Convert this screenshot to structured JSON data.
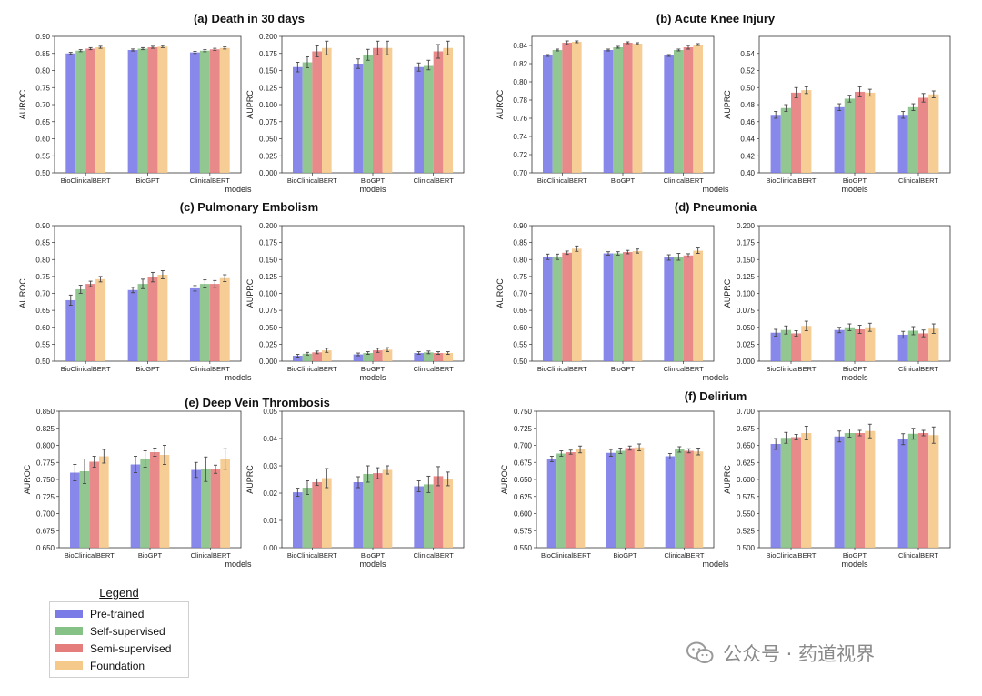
{
  "colors": {
    "series": [
      "#7b7be8",
      "#86c186",
      "#e57d7d",
      "#f5c98a"
    ],
    "axis": "#333333",
    "errorbar": "#444444"
  },
  "legend": {
    "title": "Legend",
    "entries": [
      "Pre-trained",
      "Self-supervised",
      "Semi-supervised",
      "Foundation"
    ]
  },
  "watermark": {
    "icon": "wechat-icon",
    "text": "公众号 · 药道视界"
  },
  "chart_data": [
    {
      "type": "bar",
      "title": "(a) Death in 30 days",
      "xlabel": "",
      "ylabel": "AUROC",
      "categories": [
        "BioClinicalBERT",
        "BioGPT",
        "ClinicalBERT"
      ],
      "ylim": [
        0.5,
        0.9
      ],
      "yticks": [
        "0.50",
        "0.55",
        "0.60",
        "0.65",
        "0.70",
        "0.75",
        "0.80",
        "0.85",
        "0.90"
      ],
      "series": [
        {
          "name": "Pre-trained",
          "values": [
            0.85,
            0.86,
            0.853
          ],
          "err": [
            0.003,
            0.003,
            0.003
          ]
        },
        {
          "name": "Self-supervised",
          "values": [
            0.858,
            0.864,
            0.858
          ],
          "err": [
            0.003,
            0.003,
            0.003
          ]
        },
        {
          "name": "Semi-supervised",
          "values": [
            0.864,
            0.868,
            0.862
          ],
          "err": [
            0.003,
            0.003,
            0.003
          ]
        },
        {
          "name": "Foundation",
          "values": [
            0.868,
            0.87,
            0.866
          ],
          "err": [
            0.003,
            0.003,
            0.003
          ]
        }
      ]
    },
    {
      "type": "bar",
      "title": "",
      "xlabel": "models",
      "ylabel": "AUPRC",
      "categories": [
        "BioClinicalBERT",
        "BioGPT",
        "ClinicalBERT"
      ],
      "ylim": [
        0.0,
        0.2
      ],
      "yticks": [
        "0.000",
        "0.025",
        "0.050",
        "0.075",
        "0.100",
        "0.125",
        "0.150",
        "0.175",
        "0.200"
      ],
      "series": [
        {
          "name": "Pre-trained",
          "values": [
            0.155,
            0.16,
            0.155
          ],
          "err": [
            0.007,
            0.007,
            0.006
          ]
        },
        {
          "name": "Self-supervised",
          "values": [
            0.162,
            0.173,
            0.158
          ],
          "err": [
            0.008,
            0.008,
            0.007
          ]
        },
        {
          "name": "Semi-supervised",
          "values": [
            0.178,
            0.183,
            0.178
          ],
          "err": [
            0.008,
            0.01,
            0.01
          ]
        },
        {
          "name": "Foundation",
          "values": [
            0.183,
            0.183,
            0.183
          ],
          "err": [
            0.01,
            0.01,
            0.01
          ]
        }
      ]
    },
    {
      "type": "bar",
      "title": "(b) Acute Knee Injury",
      "xlabel": "",
      "ylabel": "AUROC",
      "categories": [
        "BioClinicalBERT",
        "BioGPT",
        "ClinicalBERT"
      ],
      "ylim": [
        0.7,
        0.85
      ],
      "yticks": [
        "0.70",
        "0.72",
        "0.74",
        "0.76",
        "0.78",
        "0.80",
        "0.82",
        "0.84"
      ],
      "series": [
        {
          "name": "Pre-trained",
          "values": [
            0.829,
            0.835,
            0.829
          ],
          "err": [
            0.001,
            0.001,
            0.001
          ]
        },
        {
          "name": "Self-supervised",
          "values": [
            0.835,
            0.838,
            0.835
          ],
          "err": [
            0.001,
            0.001,
            0.001
          ]
        },
        {
          "name": "Semi-supervised",
          "values": [
            0.843,
            0.843,
            0.838
          ],
          "err": [
            0.002,
            0.001,
            0.002
          ]
        },
        {
          "name": "Foundation",
          "values": [
            0.844,
            0.842,
            0.841
          ],
          "err": [
            0.001,
            0.001,
            0.001
          ]
        }
      ]
    },
    {
      "type": "bar",
      "title": "",
      "xlabel": "models",
      "ylabel": "AUPRC",
      "categories": [
        "BioClinicalBERT",
        "BioGPT",
        "ClinicalBERT"
      ],
      "ylim": [
        0.4,
        0.56
      ],
      "yticks": [
        "0.40",
        "0.42",
        "0.44",
        "0.46",
        "0.48",
        "0.50",
        "0.52",
        "0.54"
      ],
      "series": [
        {
          "name": "Pre-trained",
          "values": [
            0.468,
            0.477,
            0.468
          ],
          "err": [
            0.004,
            0.004,
            0.004
          ]
        },
        {
          "name": "Self-supervised",
          "values": [
            0.476,
            0.487,
            0.477
          ],
          "err": [
            0.004,
            0.004,
            0.004
          ]
        },
        {
          "name": "Semi-supervised",
          "values": [
            0.494,
            0.495,
            0.488
          ],
          "err": [
            0.006,
            0.006,
            0.005
          ]
        },
        {
          "name": "Foundation",
          "values": [
            0.497,
            0.494,
            0.492
          ],
          "err": [
            0.004,
            0.004,
            0.004
          ]
        }
      ]
    },
    {
      "type": "bar",
      "title": "(c) Pulmonary Embolism",
      "xlabel": "",
      "ylabel": "AUROC",
      "categories": [
        "BioClinicalBERT",
        "BioGPT",
        "ClinicalBERT"
      ],
      "ylim": [
        0.5,
        0.9
      ],
      "yticks": [
        "0.50",
        "0.55",
        "0.60",
        "0.65",
        "0.70",
        "0.75",
        "0.80",
        "0.85",
        "0.90"
      ],
      "series": [
        {
          "name": "Pre-trained",
          "values": [
            0.68,
            0.71,
            0.715
          ],
          "err": [
            0.015,
            0.008,
            0.008
          ]
        },
        {
          "name": "Self-supervised",
          "values": [
            0.712,
            0.728,
            0.728
          ],
          "err": [
            0.012,
            0.014,
            0.012
          ]
        },
        {
          "name": "Semi-supervised",
          "values": [
            0.728,
            0.748,
            0.728
          ],
          "err": [
            0.008,
            0.014,
            0.01
          ]
        },
        {
          "name": "Foundation",
          "values": [
            0.742,
            0.755,
            0.745
          ],
          "err": [
            0.008,
            0.012,
            0.01
          ]
        }
      ]
    },
    {
      "type": "bar",
      "title": "",
      "xlabel": "models",
      "ylabel": "AUPRC",
      "categories": [
        "BioClinicalBERT",
        "BioGPT",
        "ClinicalBERT"
      ],
      "ylim": [
        0.0,
        0.2
      ],
      "yticks": [
        "0.000",
        "0.025",
        "0.050",
        "0.075",
        "0.100",
        "0.125",
        "0.150",
        "0.175",
        "0.200"
      ],
      "series": [
        {
          "name": "Pre-trained",
          "values": [
            0.008,
            0.01,
            0.012
          ],
          "err": [
            0.002,
            0.002,
            0.002
          ]
        },
        {
          "name": "Self-supervised",
          "values": [
            0.011,
            0.012,
            0.013
          ],
          "err": [
            0.002,
            0.002,
            0.002
          ]
        },
        {
          "name": "Semi-supervised",
          "values": [
            0.013,
            0.016,
            0.012
          ],
          "err": [
            0.002,
            0.003,
            0.002
          ]
        },
        {
          "name": "Foundation",
          "values": [
            0.016,
            0.017,
            0.012
          ],
          "err": [
            0.003,
            0.003,
            0.002
          ]
        }
      ]
    },
    {
      "type": "bar",
      "title": "(d) Pneumonia",
      "xlabel": "",
      "ylabel": "AUROC",
      "categories": [
        "BioClinicalBERT",
        "BioGPT",
        "ClinicalBERT"
      ],
      "ylim": [
        0.5,
        0.9
      ],
      "yticks": [
        "0.50",
        "0.55",
        "0.60",
        "0.65",
        "0.70",
        "0.75",
        "0.80",
        "0.85",
        "0.90"
      ],
      "series": [
        {
          "name": "Pre-trained",
          "values": [
            0.808,
            0.818,
            0.806
          ],
          "err": [
            0.008,
            0.005,
            0.008
          ]
        },
        {
          "name": "Self-supervised",
          "values": [
            0.808,
            0.818,
            0.808
          ],
          "err": [
            0.008,
            0.005,
            0.01
          ]
        },
        {
          "name": "Semi-supervised",
          "values": [
            0.82,
            0.822,
            0.812
          ],
          "err": [
            0.005,
            0.005,
            0.005
          ]
        },
        {
          "name": "Foundation",
          "values": [
            0.832,
            0.825,
            0.826
          ],
          "err": [
            0.008,
            0.006,
            0.008
          ]
        }
      ]
    },
    {
      "type": "bar",
      "title": "",
      "xlabel": "models",
      "ylabel": "AUPRC",
      "categories": [
        "BioClinicalBERT",
        "BioGPT",
        "ClinicalBERT"
      ],
      "ylim": [
        0.0,
        0.2
      ],
      "yticks": [
        "0.000",
        "0.025",
        "0.050",
        "0.075",
        "0.100",
        "0.125",
        "0.150",
        "0.175",
        "0.200"
      ],
      "series": [
        {
          "name": "Pre-trained",
          "values": [
            0.042,
            0.046,
            0.039
          ],
          "err": [
            0.005,
            0.004,
            0.005
          ]
        },
        {
          "name": "Self-supervised",
          "values": [
            0.046,
            0.05,
            0.045
          ],
          "err": [
            0.006,
            0.005,
            0.006
          ]
        },
        {
          "name": "Semi-supervised",
          "values": [
            0.041,
            0.047,
            0.041
          ],
          "err": [
            0.004,
            0.006,
            0.005
          ]
        },
        {
          "name": "Foundation",
          "values": [
            0.052,
            0.05,
            0.048
          ],
          "err": [
            0.007,
            0.006,
            0.007
          ]
        }
      ]
    },
    {
      "type": "bar",
      "title": "(e) Deep Vein Thrombosis",
      "xlabel": "",
      "ylabel": "AUROC",
      "categories": [
        "BioClinicalBERT",
        "BioGPT",
        "ClinicalBERT"
      ],
      "ylim": [
        0.65,
        0.85
      ],
      "yticks": [
        "0.650",
        "0.675",
        "0.700",
        "0.725",
        "0.750",
        "0.775",
        "0.800",
        "0.825",
        "0.850"
      ],
      "series": [
        {
          "name": "Pre-trained",
          "values": [
            0.76,
            0.772,
            0.764
          ],
          "err": [
            0.012,
            0.012,
            0.011
          ]
        },
        {
          "name": "Self-supervised",
          "values": [
            0.762,
            0.78,
            0.765
          ],
          "err": [
            0.018,
            0.012,
            0.018
          ]
        },
        {
          "name": "Semi-supervised",
          "values": [
            0.776,
            0.79,
            0.765
          ],
          "err": [
            0.008,
            0.006,
            0.006
          ]
        },
        {
          "name": "Foundation",
          "values": [
            0.784,
            0.786,
            0.78
          ],
          "err": [
            0.01,
            0.014,
            0.015
          ]
        }
      ]
    },
    {
      "type": "bar",
      "title": "",
      "xlabel": "models",
      "ylabel": "AUPRC",
      "categories": [
        "BioClinicalBERT",
        "BioGPT",
        "ClinicalBERT"
      ],
      "ylim": [
        0.0,
        0.05
      ],
      "yticks": [
        "0.00",
        "0.01",
        "0.02",
        "0.03",
        "0.04",
        "0.05"
      ],
      "series": [
        {
          "name": "Pre-trained",
          "values": [
            0.0203,
            0.024,
            0.0225
          ],
          "err": [
            0.0015,
            0.002,
            0.002
          ]
        },
        {
          "name": "Self-supervised",
          "values": [
            0.022,
            0.027,
            0.0232
          ],
          "err": [
            0.0025,
            0.003,
            0.003
          ]
        },
        {
          "name": "Semi-supervised",
          "values": [
            0.024,
            0.0273,
            0.0262
          ],
          "err": [
            0.0012,
            0.002,
            0.0035
          ]
        },
        {
          "name": "Foundation",
          "values": [
            0.0255,
            0.0285,
            0.0252
          ],
          "err": [
            0.0035,
            0.0015,
            0.0025
          ]
        }
      ]
    },
    {
      "type": "bar",
      "title": "(f) Delirium",
      "xlabel": "",
      "ylabel": "AUROC",
      "categories": [
        "BioClinicalBERT",
        "BioGPT",
        "ClinicalBERT"
      ],
      "ylim": [
        0.55,
        0.75
      ],
      "yticks": [
        "0.550",
        "0.575",
        "0.600",
        "0.625",
        "0.650",
        "0.675",
        "0.700",
        "0.725",
        "0.750"
      ],
      "series": [
        {
          "name": "Pre-trained",
          "values": [
            0.68,
            0.689,
            0.684
          ],
          "err": [
            0.004,
            0.005,
            0.004
          ]
        },
        {
          "name": "Self-supervised",
          "values": [
            0.688,
            0.692,
            0.694
          ],
          "err": [
            0.004,
            0.004,
            0.004
          ]
        },
        {
          "name": "Semi-supervised",
          "values": [
            0.69,
            0.696,
            0.692
          ],
          "err": [
            0.003,
            0.003,
            0.003
          ]
        },
        {
          "name": "Foundation",
          "values": [
            0.694,
            0.697,
            0.691
          ],
          "err": [
            0.005,
            0.005,
            0.005
          ]
        }
      ]
    },
    {
      "type": "bar",
      "title": "",
      "xlabel": "models",
      "ylabel": "AUPRC",
      "categories": [
        "BioClinicalBERT",
        "BioGPT",
        "ClinicalBERT"
      ],
      "ylim": [
        0.5,
        0.7
      ],
      "yticks": [
        "0.500",
        "0.525",
        "0.550",
        "0.575",
        "0.600",
        "0.625",
        "0.650",
        "0.675",
        "0.700"
      ],
      "series": [
        {
          "name": "Pre-trained",
          "values": [
            0.652,
            0.663,
            0.659
          ],
          "err": [
            0.008,
            0.008,
            0.008
          ]
        },
        {
          "name": "Self-supervised",
          "values": [
            0.661,
            0.668,
            0.667
          ],
          "err": [
            0.008,
            0.006,
            0.008
          ]
        },
        {
          "name": "Semi-supervised",
          "values": [
            0.662,
            0.668,
            0.668
          ],
          "err": [
            0.004,
            0.004,
            0.004
          ]
        },
        {
          "name": "Foundation",
          "values": [
            0.668,
            0.671,
            0.665
          ],
          "err": [
            0.01,
            0.01,
            0.012
          ]
        }
      ]
    }
  ]
}
